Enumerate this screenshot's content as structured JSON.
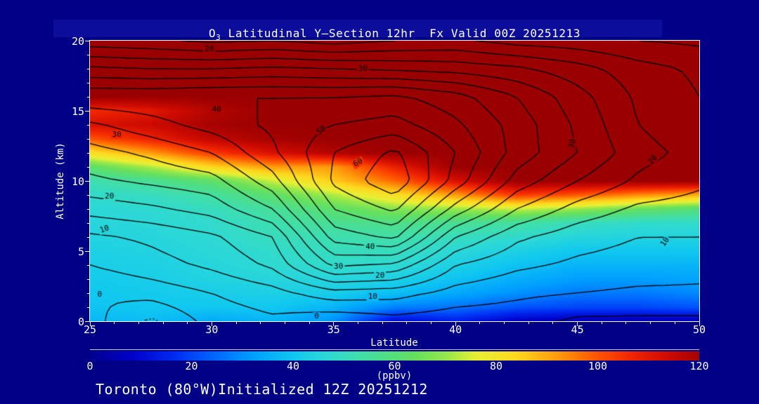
{
  "title": {
    "prefix": "O",
    "sub": "3",
    "rest": " Latitudinal Y–Section 12hr  Fx Valid 00Z 20251213"
  },
  "footer": {
    "text": "Toronto (80°W)Initialized 12Z 20251212"
  },
  "colors": {
    "background": "#000087",
    "title_band": "#0D0D9C",
    "frame": "#FFFFFF",
    "text": "#FFFFFF",
    "contour_line": "#000000"
  },
  "chart_data": {
    "type": "filled_contour_cross_section",
    "title": "O3 Latitudinal Y-Section 12hr  Fx Valid 00Z 20251213",
    "axes": {
      "x": {
        "label": "Latitude",
        "min": 25,
        "max": 50,
        "major_ticks": [
          25,
          30,
          35,
          40,
          45,
          50
        ],
        "minor_step": 1
      },
      "y": {
        "label": "Altitude (km)",
        "min": 0,
        "max": 20,
        "major_ticks": [
          0,
          5,
          10,
          15,
          20
        ],
        "minor_step": 1
      }
    },
    "fill_units": "ppbv",
    "colormap_stops": [
      [
        0,
        "#00008F"
      ],
      [
        8,
        "#0000C8"
      ],
      [
        16,
        "#0028F0"
      ],
      [
        24,
        "#0064FF"
      ],
      [
        32,
        "#00A0FF"
      ],
      [
        40,
        "#10C8F0"
      ],
      [
        46,
        "#2BD8D8"
      ],
      [
        52,
        "#3EDEB0"
      ],
      [
        58,
        "#4FDE86"
      ],
      [
        64,
        "#66E05E"
      ],
      [
        70,
        "#95E84A"
      ],
      [
        76,
        "#E8F034"
      ],
      [
        84,
        "#FFD81E"
      ],
      [
        92,
        "#FF9C0C"
      ],
      [
        100,
        "#FF5400"
      ],
      [
        107,
        "#F02400"
      ],
      [
        114,
        "#CC0A00"
      ],
      [
        122,
        "#9A0000"
      ]
    ],
    "fill_grid": {
      "lat": [
        25,
        27.5,
        30,
        32.5,
        35,
        37.5,
        40,
        42.5,
        45,
        47.5,
        50
      ],
      "alt": [
        0,
        1,
        2,
        3,
        4,
        5,
        6,
        7,
        8,
        9,
        10,
        11,
        12,
        13,
        14,
        15,
        16,
        18,
        20
      ],
      "values_by_alt": [
        [
          37,
          38,
          34,
          36,
          30,
          10,
          14,
          7,
          5,
          5,
          6
        ],
        [
          39,
          40,
          40,
          40,
          36,
          28,
          26,
          22,
          20,
          20,
          22
        ],
        [
          40,
          41,
          42,
          43,
          42,
          38,
          34,
          30,
          27,
          27,
          29
        ],
        [
          41,
          42,
          44,
          45,
          45,
          43,
          39,
          35,
          32,
          32,
          33
        ],
        [
          42,
          43,
          45,
          47,
          48,
          47,
          43,
          39,
          36,
          36,
          36
        ],
        [
          43,
          44,
          46,
          48,
          50,
          50,
          46,
          43,
          40,
          40,
          40
        ],
        [
          44,
          45,
          47,
          50,
          52,
          53,
          50,
          48,
          45,
          44,
          44
        ],
        [
          45,
          46,
          48,
          52,
          56,
          58,
          56,
          54,
          50,
          48,
          48
        ],
        [
          46,
          47,
          50,
          55,
          62,
          68,
          70,
          74,
          70,
          64,
          60
        ],
        [
          48,
          50,
          54,
          62,
          72,
          82,
          92,
          104,
          100,
          94,
          90
        ],
        [
          52,
          56,
          62,
          74,
          86,
          98,
          112,
          122,
          122,
          122,
          122
        ],
        [
          62,
          72,
          84,
          92,
          92,
          108,
          122,
          122,
          122,
          122,
          122
        ],
        [
          82,
          92,
          104,
          112,
          118,
          122,
          122,
          122,
          122,
          122,
          122
        ],
        [
          100,
          108,
          116,
          120,
          122,
          122,
          122,
          122,
          122,
          122,
          122
        ],
        [
          112,
          114,
          120,
          122,
          122,
          122,
          122,
          122,
          122,
          122,
          122
        ],
        [
          106,
          110,
          118,
          122,
          122,
          122,
          122,
          122,
          122,
          122,
          122
        ],
        [
          122,
          122,
          122,
          122,
          122,
          122,
          122,
          122,
          122,
          122,
          122
        ],
        [
          122,
          122,
          122,
          122,
          122,
          122,
          122,
          122,
          122,
          122,
          122
        ],
        [
          122,
          122,
          122,
          122,
          122,
          122,
          122,
          122,
          122,
          122,
          122
        ]
      ]
    },
    "line_contours": {
      "levels_min": -5,
      "levels_max": 65,
      "levels_step": 5,
      "negative_style": "dotted",
      "grid": {
        "lat": [
          25,
          27.5,
          30,
          32.5,
          35,
          37.5,
          40,
          42.5,
          45,
          47.5,
          50
        ],
        "alt": [
          0,
          2,
          4,
          6,
          8,
          10,
          12,
          14,
          16,
          18,
          20
        ],
        "values_by_alt": [
          [
            2,
            -6,
            2,
            4,
            1,
            3,
            2,
            2,
            -1,
            -1,
            -1
          ],
          [
            0,
            2,
            5,
            8,
            13,
            12,
            8,
            6,
            5,
            4,
            4
          ],
          [
            5,
            8,
            11,
            16,
            31,
            29,
            15,
            11,
            9,
            8,
            7
          ],
          [
            9,
            11,
            14,
            20,
            42,
            46,
            25,
            16,
            12,
            10,
            10
          ],
          [
            17,
            19,
            22,
            30,
            50,
            56,
            38,
            25,
            18,
            14,
            13
          ],
          [
            24,
            26,
            28,
            38,
            56,
            64,
            48,
            33,
            25,
            19,
            16
          ],
          [
            28,
            31,
            35,
            44,
            55,
            61,
            50,
            38,
            30,
            22,
            18
          ],
          [
            34,
            38,
            42,
            46,
            50,
            52,
            46,
            38,
            29,
            20,
            16
          ],
          [
            44,
            44,
            45,
            45,
            45,
            46,
            42,
            35,
            27,
            19,
            15
          ],
          [
            31,
            30,
            30,
            31,
            30,
            29,
            28,
            26,
            22,
            17,
            14
          ],
          [
            17,
            16,
            14,
            15,
            13,
            15,
            16,
            13,
            12,
            10,
            9
          ]
        ]
      }
    },
    "contour_labels": [
      {
        "text": "20",
        "lat": 29.9,
        "alt": 19.4,
        "rot": 0
      },
      {
        "text": "30",
        "lat": 36.2,
        "alt": 18.0,
        "rot": 0
      },
      {
        "text": "40",
        "lat": 30.2,
        "alt": 15.1,
        "rot": 0
      },
      {
        "text": "30",
        "lat": 26.1,
        "alt": 13.3,
        "rot": 0
      },
      {
        "text": "50",
        "lat": 34.5,
        "alt": 13.6,
        "rot": -35
      },
      {
        "text": "60",
        "lat": 36.0,
        "alt": 11.3,
        "rot": -30
      },
      {
        "text": "40",
        "lat": 36.5,
        "alt": 5.3,
        "rot": 0
      },
      {
        "text": "30",
        "lat": 35.2,
        "alt": 3.9,
        "rot": 0
      },
      {
        "text": "20",
        "lat": 36.9,
        "alt": 3.25,
        "rot": 0
      },
      {
        "text": "10",
        "lat": 36.6,
        "alt": 1.75,
        "rot": 0
      },
      {
        "text": "0",
        "lat": 34.3,
        "alt": 0.35,
        "rot": 0
      },
      {
        "text": "20",
        "lat": 25.8,
        "alt": 8.9,
        "rot": 0
      },
      {
        "text": "10",
        "lat": 25.6,
        "alt": 6.55,
        "rot": -20
      },
      {
        "text": "0",
        "lat": 25.4,
        "alt": 1.9,
        "rot": 0
      },
      {
        "text": "30",
        "lat": 44.8,
        "alt": 12.65,
        "rot": -75
      },
      {
        "text": "20",
        "lat": 48.1,
        "alt": 11.5,
        "rot": -50
      },
      {
        "text": "10",
        "lat": 48.6,
        "alt": 5.65,
        "rot": -55
      }
    ],
    "colorbar": {
      "min": 0,
      "max": 120,
      "ticks": [
        0,
        20,
        40,
        60,
        80,
        100,
        120
      ],
      "unit": "(ppbv)"
    }
  }
}
